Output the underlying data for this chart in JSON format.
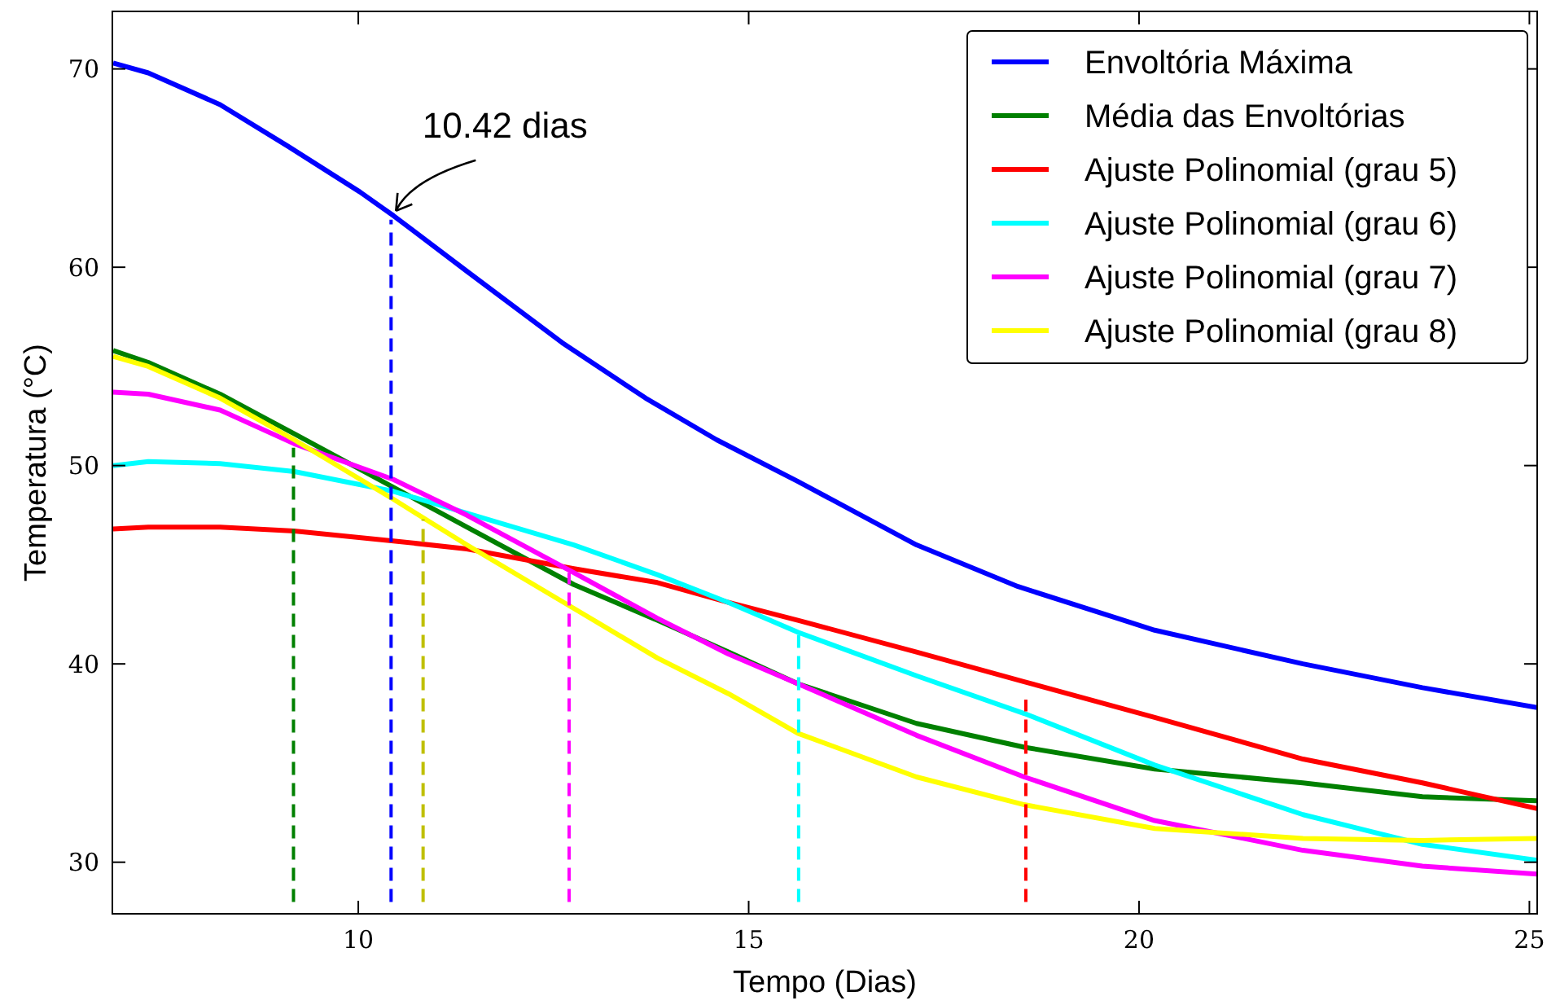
{
  "chart_data": {
    "type": "line",
    "xlabel": "Tempo (Dias)",
    "ylabel": "Temperatura (°C)",
    "xlim": [
      6.85,
      25.1
    ],
    "ylim": [
      27.4,
      72.9
    ],
    "xticks": [
      10,
      15,
      20,
      25
    ],
    "yticks": [
      30,
      40,
      50,
      60,
      70
    ],
    "grid": false,
    "legend": "top right",
    "line_style": "solid",
    "marker": "none",
    "annotations": [
      {
        "text": "10.42 dias",
        "x": 10.42,
        "y": 62.6
      }
    ],
    "x": [
      6.86,
      7.31,
      8.23,
      9.18,
      10.45,
      11.39,
      12.76,
      13.83,
      14.74,
      15.63,
      17.15,
      18.53,
      20.2,
      22.1,
      23.63,
      25.1
    ],
    "series": [
      {
        "name": "Envoltória Máxima",
        "color": "#0000ff",
        "x": [
          6.86,
          7.31,
          8.23,
          9.1,
          10.02,
          10.45,
          11.39,
          12.61,
          13.68,
          14.59,
          15.63,
          17.15,
          18.45,
          20.2,
          22.1,
          23.63,
          25.1
        ],
        "values": [
          70.3,
          69.8,
          68.2,
          66.1,
          63.8,
          62.6,
          59.8,
          56.2,
          53.4,
          51.3,
          49.2,
          46.0,
          43.9,
          41.7,
          40.0,
          38.8,
          37.8
        ]
      },
      {
        "name": "Média das Envoltórias",
        "color": "#008000",
        "values": [
          55.8,
          55.2,
          53.6,
          51.6,
          48.9,
          46.9,
          44.0,
          42.2,
          40.6,
          39.0,
          37.0,
          35.8,
          34.7,
          34.0,
          33.3,
          33.1
        ]
      },
      {
        "name": "Ajuste Polinomial (grau 5)",
        "color": "#ff0000",
        "values": [
          46.8,
          46.9,
          46.9,
          46.7,
          46.2,
          45.8,
          44.8,
          44.1,
          43.1,
          42.2,
          40.6,
          39.1,
          37.3,
          35.2,
          34.0,
          32.7
        ]
      },
      {
        "name": "Ajuste Polinomial (grau 6)",
        "color": "#00ffff",
        "values": [
          50.0,
          50.2,
          50.1,
          49.7,
          48.7,
          47.6,
          46.0,
          44.5,
          43.1,
          41.6,
          39.4,
          37.5,
          34.9,
          32.4,
          30.9,
          30.1
        ]
      },
      {
        "name": "Ajuste Polinomial (grau 7)",
        "color": "#ff00ff",
        "values": [
          53.7,
          53.6,
          52.8,
          51.1,
          49.3,
          47.5,
          44.6,
          42.3,
          40.5,
          39.0,
          36.4,
          34.3,
          32.1,
          30.6,
          29.8,
          29.4
        ]
      },
      {
        "name": "Ajuste Polinomial (grau 8)",
        "color": "#ffff00",
        "values": [
          55.5,
          55.0,
          53.4,
          51.3,
          48.3,
          46.0,
          42.8,
          40.3,
          38.5,
          36.5,
          34.3,
          32.9,
          31.7,
          31.2,
          31.1,
          31.2
        ]
      },
      {
        "type": "line",
        "line_style": "dashed",
        "color": "#008000",
        "x": [
          9.17,
          9.17
        ],
        "values": [
          28.0,
          50.9
        ]
      },
      {
        "type": "line",
        "line_style": "dashed",
        "color": "#0000ff",
        "x": [
          10.42,
          10.42
        ],
        "values": [
          28.0,
          62.4
        ]
      },
      {
        "type": "line",
        "line_style": "dashed",
        "color": "#bfbf00",
        "x": [
          10.83,
          10.83
        ],
        "values": [
          28.0,
          47.3
        ]
      },
      {
        "type": "line",
        "line_style": "dashed",
        "color": "#ff00ff",
        "x": [
          12.7,
          12.7
        ],
        "values": [
          28.0,
          44.6
        ]
      },
      {
        "type": "line",
        "line_style": "dashed",
        "color": "#00ffff",
        "x": [
          15.64,
          15.64
        ],
        "values": [
          28.0,
          41.6
        ]
      },
      {
        "type": "line",
        "line_style": "dashed",
        "color": "#ff0000",
        "x": [
          18.55,
          18.55
        ],
        "values": [
          28.0,
          38.2
        ]
      }
    ]
  }
}
